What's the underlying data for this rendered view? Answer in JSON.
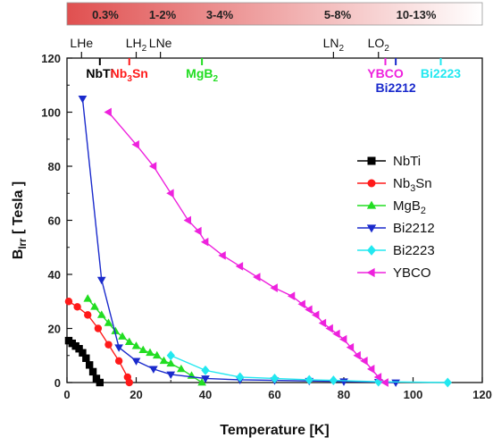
{
  "chart_data": {
    "type": "scatter",
    "xlabel": "Temperature [K]",
    "ylabel": {
      "main": "B",
      "sub": "Irr",
      "rest": " [ Tesla ]"
    },
    "xlim": [
      0,
      120
    ],
    "ylim": [
      0,
      120
    ],
    "xticks": [
      0,
      20,
      40,
      60,
      80,
      100,
      120
    ],
    "yticks": [
      0,
      20,
      40,
      60,
      80,
      100,
      120
    ],
    "legend_position": "right-middle",
    "series": [
      {
        "name": {
          "main": "NbTi",
          "sub": ""
        },
        "color": "#000000",
        "marker": "square",
        "x": [
          0.5,
          1.5,
          2.5,
          3.5,
          4.5,
          5.5,
          6.5,
          7.5,
          8.5,
          9.5
        ],
        "y": [
          15.5,
          14.5,
          13.5,
          12.5,
          11,
          9,
          6.5,
          4,
          1.5,
          0
        ]
      },
      {
        "name": {
          "main": "Nb",
          "sub": "3",
          "rest": "Sn"
        },
        "color": "#ff1a1a",
        "marker": "circle",
        "x": [
          0.5,
          3,
          6,
          9,
          12,
          15,
          17.5,
          18
        ],
        "y": [
          30,
          28,
          25,
          20,
          14,
          8,
          2,
          0
        ]
      },
      {
        "name": {
          "main": "MgB",
          "sub": "2"
        },
        "color": "#22dd22",
        "marker": "triangle-up",
        "x": [
          6,
          8,
          10,
          12,
          14,
          16,
          18,
          20,
          22,
          24,
          26,
          28,
          30,
          33,
          36,
          39
        ],
        "y": [
          31,
          28,
          25,
          22,
          19,
          17,
          15,
          13.5,
          12,
          11,
          10,
          8,
          7,
          5,
          2.5,
          0
        ]
      },
      {
        "name": {
          "main": "Bi2212",
          "sub": ""
        },
        "color": "#1a2acc",
        "marker": "triangle-down",
        "x": [
          4.5,
          10,
          15,
          20,
          25,
          30,
          40,
          50,
          60,
          70,
          80,
          90,
          95
        ],
        "y": [
          105,
          38,
          13,
          8,
          5,
          3,
          1.5,
          1,
          0.8,
          0.6,
          0.4,
          0.2,
          0
        ]
      },
      {
        "name": {
          "main": "Bi2223",
          "sub": ""
        },
        "color": "#22e8f0",
        "marker": "diamond",
        "x": [
          30,
          40,
          50,
          60,
          70,
          77,
          90,
          110
        ],
        "y": [
          10,
          4.5,
          2,
          1.5,
          1,
          0.8,
          0.3,
          0
        ]
      },
      {
        "name": {
          "main": "YBCO",
          "sub": ""
        },
        "color": "#ee22dd",
        "marker": "triangle-left",
        "x": [
          12,
          20,
          25,
          30,
          35,
          38,
          40,
          45,
          50,
          55,
          60,
          65,
          68,
          70,
          72,
          74,
          76,
          78,
          80,
          82,
          84,
          86,
          88,
          90,
          92
        ],
        "y": [
          100,
          88,
          80,
          70,
          60,
          56,
          52,
          47,
          43,
          39,
          35,
          32,
          29,
          27,
          25,
          22,
          20,
          18,
          16,
          13,
          10,
          8,
          5,
          2,
          0
        ]
      }
    ],
    "bath_markers": [
      {
        "label": {
          "main": "LHe",
          "sub": ""
        },
        "x": 4.2
      },
      {
        "label": {
          "main": "LH",
          "sub": "2"
        },
        "x": 20
      },
      {
        "label": {
          "main": "LNe",
          "sub": ""
        },
        "x": 27
      },
      {
        "label": {
          "main": "LN",
          "sub": "2"
        },
        "x": 77
      },
      {
        "label": {
          "main": "LO",
          "sub": "2"
        },
        "x": 90
      }
    ],
    "material_labels": [
      {
        "label": {
          "main": "NbTi",
          "sub": ""
        },
        "x": 9.5,
        "row": 1,
        "color": "#000000"
      },
      {
        "label": {
          "main": "Nb",
          "sub": "3",
          "rest": "Sn"
        },
        "x": 18,
        "row": 1,
        "color": "#ff1a1a"
      },
      {
        "label": {
          "main": "MgB",
          "sub": "2"
        },
        "x": 39,
        "row": 1,
        "color": "#22dd22"
      },
      {
        "label": {
          "main": "YBCO",
          "sub": ""
        },
        "x": 92,
        "row": 2,
        "color": "#ee22dd"
      },
      {
        "label": {
          "main": "Bi2212",
          "sub": ""
        },
        "x": 95,
        "row": 3,
        "color": "#1a2acc"
      },
      {
        "label": {
          "main": "Bi2223",
          "sub": ""
        },
        "x": 108,
        "row": 2,
        "color": "#22e8f0"
      }
    ],
    "cost_bar": {
      "labels": [
        "0.3%",
        "1-2%",
        "3-4%",
        "5-8%",
        "10-13%"
      ],
      "gradient_from": "#e05050",
      "gradient_to": "#ffffff"
    }
  }
}
